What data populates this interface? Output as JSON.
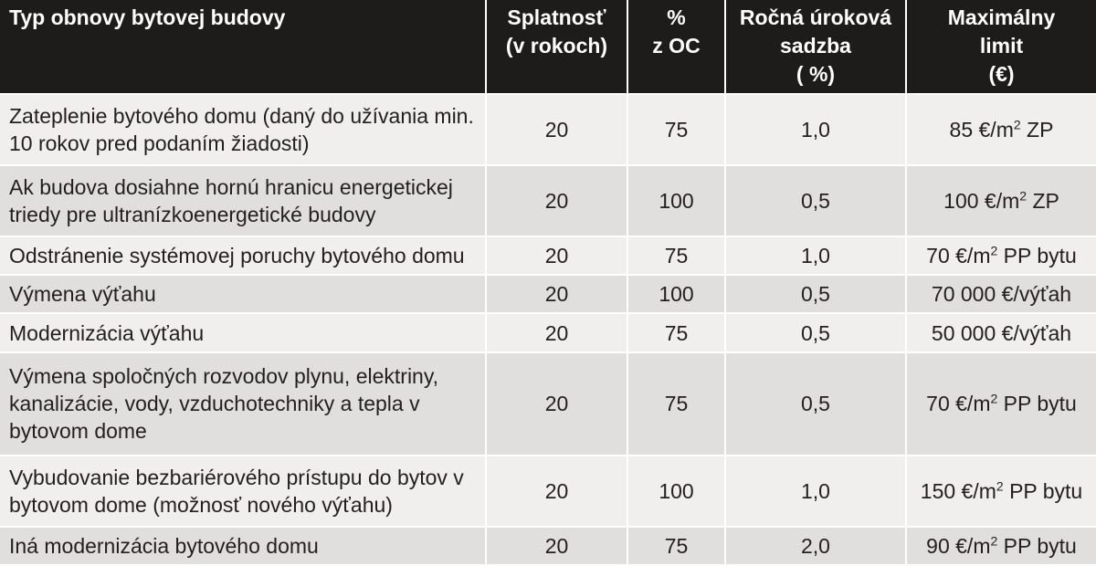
{
  "headers": [
    "Typ obnovy bytovej budovy",
    "Splatnosť\n(v rokoch)",
    "%\nz OC",
    "Ročná úroková\nsadzba\n( %)",
    "Maximálny\nlimit\n(€)"
  ],
  "rows": [
    {
      "type": "Zateplenie bytového domu (daný do užívania min. 10 rokov pred podaním žiadosti)",
      "splatnost": "20",
      "percent": "75",
      "rate": "1,0",
      "limit": {
        "pre": "85 €/m",
        "sup": "2",
        "post": " ZP"
      }
    },
    {
      "type": "Ak budova dosiahne hornú hranicu energetickej triedy pre ultranízkoenergetické budovy",
      "splatnost": "20",
      "percent": "100",
      "rate": "0,5",
      "limit": {
        "pre": "100 €/m",
        "sup": "2",
        "post": " ZP"
      }
    },
    {
      "type": "Odstránenie systémovej poruchy bytového domu",
      "splatnost": "20",
      "percent": "75",
      "rate": "1,0",
      "limit": {
        "pre": "70 €/m",
        "sup": "2",
        "post": " PP bytu"
      }
    },
    {
      "type": "Výmena výťahu",
      "splatnost": "20",
      "percent": "100",
      "rate": "0,5",
      "limit": {
        "pre": "70 000 €/výťah",
        "sup": "",
        "post": ""
      }
    },
    {
      "type": "Modernizácia výťahu",
      "splatnost": "20",
      "percent": "75",
      "rate": "0,5",
      "limit": {
        "pre": "50 000 €/výťah",
        "sup": "",
        "post": ""
      }
    },
    {
      "type": "Výmena spoločných rozvodov plynu, elektriny, kanalizácie, vody, vzduchotechniky a tepla v bytovom dome",
      "splatnost": "20",
      "percent": "75",
      "rate": "0,5",
      "limit": {
        "pre": "70 €/m",
        "sup": "2",
        "post": " PP bytu"
      }
    },
    {
      "type": "Vybudovanie bezbariérového prístupu do bytov v bytovom dome (možnosť nového výťahu)",
      "splatnost": "20",
      "percent": "100",
      "rate": "1,0",
      "limit": {
        "pre": "150 €/m",
        "sup": "2",
        "post": " PP bytu"
      }
    },
    {
      "type": "Iná modernizácia bytového domu",
      "splatnost": "20",
      "percent": "75",
      "rate": "2,0",
      "limit": {
        "pre": "90 €/m",
        "sup": "2",
        "post": " PP bytu"
      }
    }
  ]
}
